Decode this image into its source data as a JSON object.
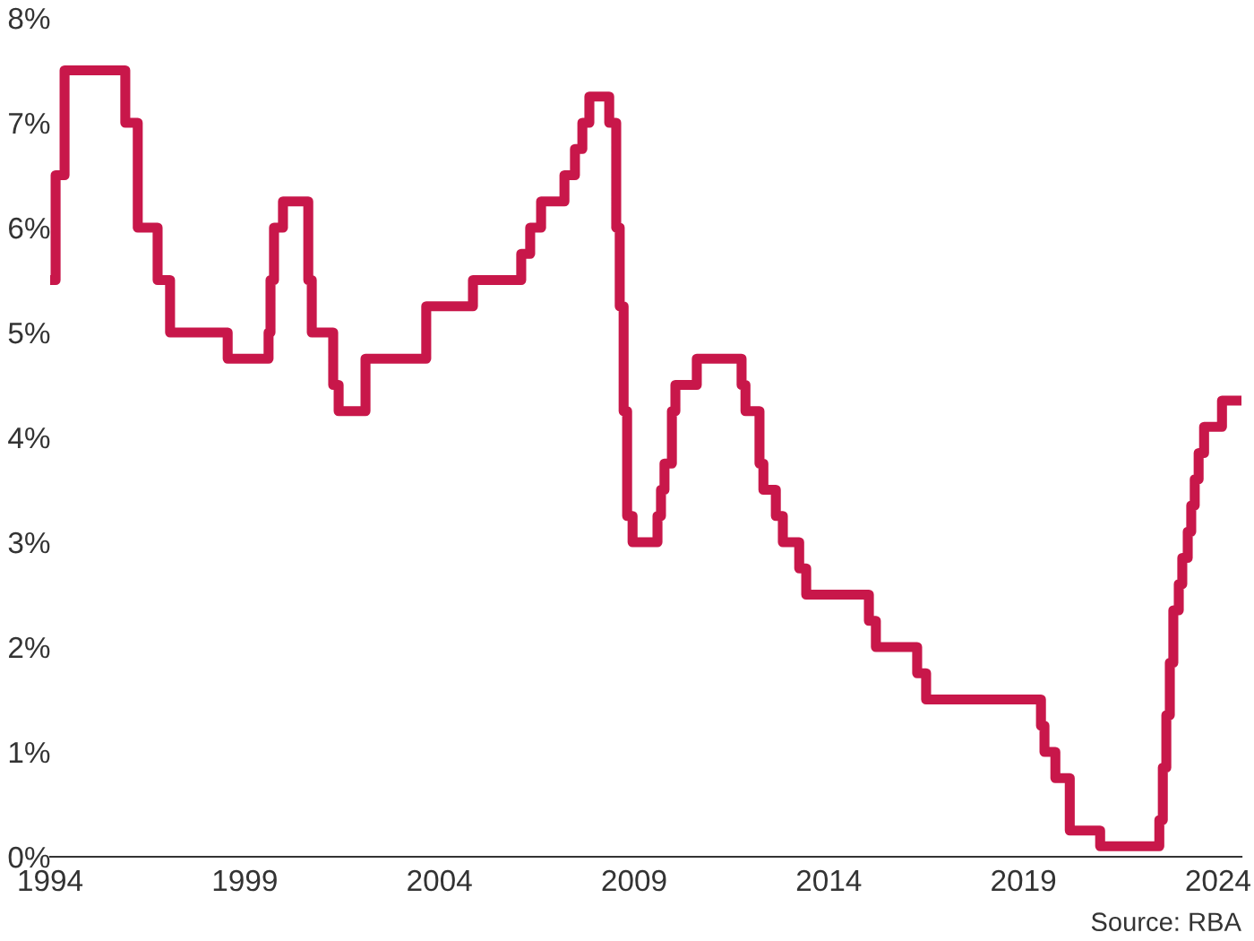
{
  "chart_data": {
    "type": "step",
    "x": [
      1994.0,
      1994.14,
      1994.37,
      1995.93,
      1996.25,
      1996.76,
      1997.08,
      1998.56,
      1999.61,
      1999.66,
      1999.75,
      1999.98,
      2000.21,
      2000.63,
      2000.72,
      2000.86,
      2001.27,
      2001.41,
      2001.59,
      2002.1,
      2003.66,
      2004.86,
      2006.1,
      2006.33,
      2006.61,
      2007.21,
      2007.48,
      2007.67,
      2007.85,
      2008.36,
      2008.54,
      2008.63,
      2008.73,
      2008.82,
      2008.96,
      2009.6,
      2009.69,
      2009.78,
      2009.97,
      2010.06,
      2010.61,
      2011.76,
      2011.86,
      2012.22,
      2012.32,
      2012.64,
      2012.82,
      2013.24,
      2013.42,
      2015.03,
      2015.21,
      2016.27,
      2016.5,
      2019.45,
      2019.54,
      2019.82,
      2020.19,
      2020.97,
      2022.49,
      2022.58,
      2022.67,
      2022.76,
      2022.85,
      2022.99,
      2023.08,
      2023.22,
      2023.31,
      2023.4,
      2023.5,
      2023.64,
      2024.1,
      2024.6
    ],
    "series": [
      {
        "color": "#c8174a",
        "values": [
          5.5,
          6.5,
          7.5,
          7.0,
          6.0,
          5.5,
          5.0,
          4.75,
          5.0,
          5.5,
          6.0,
          6.25,
          6.25,
          5.5,
          5.0,
          5.0,
          4.5,
          4.25,
          4.25,
          4.75,
          5.25,
          5.5,
          5.75,
          6.0,
          6.25,
          6.5,
          6.75,
          7.0,
          7.25,
          7.0,
          6.0,
          5.25,
          4.25,
          3.25,
          3.0,
          3.25,
          3.5,
          3.75,
          4.25,
          4.5,
          4.75,
          4.5,
          4.25,
          3.75,
          3.5,
          3.25,
          3.0,
          2.75,
          2.5,
          2.25,
          2.0,
          1.75,
          1.5,
          1.25,
          1.0,
          0.75,
          0.25,
          0.1,
          0.35,
          0.85,
          1.35,
          1.85,
          2.35,
          2.6,
          2.85,
          3.1,
          3.35,
          3.6,
          3.85,
          4.1,
          4.35,
          4.35
        ]
      }
    ],
    "xlim": [
      1994,
      2024.6
    ],
    "xticks": [
      1994,
      1999,
      2004,
      2009,
      2014,
      2019,
      2024
    ],
    "ylim": [
      0,
      8
    ],
    "yticks": [
      {
        "value": 0,
        "label": "0%"
      },
      {
        "value": 1,
        "label": "1%"
      },
      {
        "value": 2,
        "label": "2%"
      },
      {
        "value": 3,
        "label": "3%"
      },
      {
        "value": 4,
        "label": "4%"
      },
      {
        "value": 5,
        "label": "5%"
      },
      {
        "value": 6,
        "label": "6%"
      },
      {
        "value": 7,
        "label": "7%"
      },
      {
        "value": 8,
        "label": "8%"
      }
    ],
    "grid": false,
    "legend": false,
    "annotations": [
      "Source: RBA"
    ]
  }
}
